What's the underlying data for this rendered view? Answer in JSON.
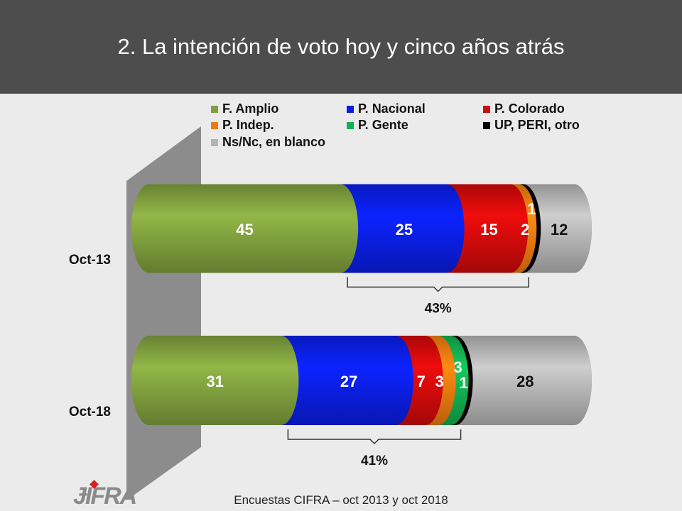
{
  "title": "2. La intención de voto hoy y cinco años atrás",
  "legend": [
    {
      "label": "F. Amplio",
      "color": "#7f9f3e"
    },
    {
      "label": "P. Nacional",
      "color": "#0a1ee6"
    },
    {
      "label": "P. Colorado",
      "color": "#d10a0a"
    },
    {
      "label": "P. Indep.",
      "color": "#f07a10"
    },
    {
      "label": "P. Gente",
      "color": "#12b050"
    },
    {
      "label": "UP, PERI, otro",
      "color": "#000000"
    },
    {
      "label": "Ns/Nc, en blanco",
      "color": "#b3b3b3"
    }
  ],
  "chart_data": {
    "type": "bar",
    "orientation": "horizontal",
    "stacked": true,
    "categories": [
      "Oct-13",
      "Oct-18"
    ],
    "series": [
      {
        "name": "F. Amplio",
        "values": [
          45,
          31
        ]
      },
      {
        "name": "P. Nacional",
        "values": [
          25,
          27
        ]
      },
      {
        "name": "P. Colorado",
        "values": [
          15,
          7
        ]
      },
      {
        "name": "P. Indep.",
        "values": [
          2,
          3
        ]
      },
      {
        "name": "P. Gente",
        "values": [
          null,
          3
        ]
      },
      {
        "name": "UP, PERI, otro",
        "values": [
          1,
          1
        ]
      },
      {
        "name": "Ns/Nc, en blanco",
        "values": [
          12,
          28
        ]
      }
    ],
    "brackets": [
      {
        "category": "Oct-13",
        "label": "43%"
      },
      {
        "category": "Oct-18",
        "label": "41%"
      }
    ]
  },
  "footer": "Encuestas CIFRA – oct 2013 y oct 2018",
  "logo": "CIFRA"
}
